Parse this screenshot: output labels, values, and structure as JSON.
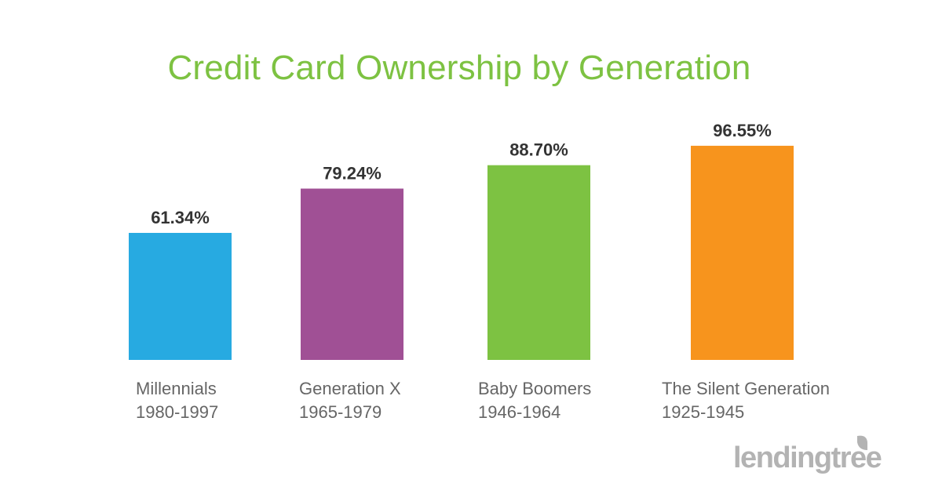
{
  "chart_data": {
    "type": "bar",
    "title": "Credit Card Ownership by Generation",
    "categories": [
      "Millennials\n1980-1997",
      "Generation X\n1965-1979",
      "Baby Boomers\n1946-1964",
      "The Silent Generation\n1925-1945"
    ],
    "values": [
      61.34,
      79.24,
      88.7,
      96.55
    ],
    "value_labels": [
      "61.34%",
      "79.24%",
      "88.70%",
      "96.55%"
    ],
    "ylim": [
      0,
      100
    ],
    "grid": false,
    "legend": "none",
    "xlabel": "",
    "ylabel": ""
  },
  "colors": {
    "title": "#7dc242",
    "bars": [
      "#27aae1",
      "#a05095",
      "#7dc242",
      "#f7941d"
    ],
    "value_text": "#333333",
    "category_text": "#666666",
    "logo": "#b3b3b3"
  },
  "brand": {
    "logo_text": "lendingtree",
    "logo_icon": "leaf-icon"
  }
}
